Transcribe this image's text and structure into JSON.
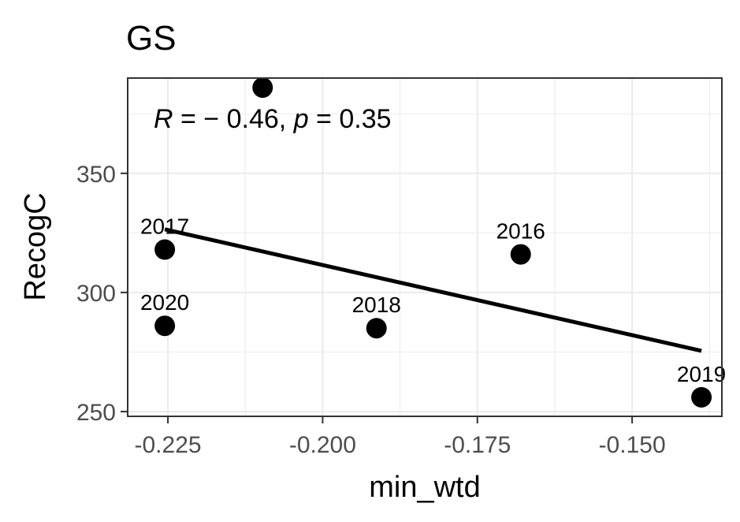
{
  "chart_data": {
    "type": "scatter",
    "title": "GS",
    "xlabel": "min_wtd",
    "ylabel": "RecogC",
    "xlim": [
      -0.2315,
      -0.1355
    ],
    "ylim": [
      248,
      390
    ],
    "x_ticks": [
      -0.225,
      -0.2,
      -0.175,
      -0.15
    ],
    "x_tick_labels": [
      "-0.225",
      "-0.200",
      "-0.175",
      "-0.150"
    ],
    "y_ticks": [
      250,
      300,
      350
    ],
    "y_tick_labels": [
      "250",
      "300",
      "350"
    ],
    "points": [
      {
        "x": -0.2097,
        "y": 386,
        "label": ""
      },
      {
        "x": -0.2255,
        "y": 318,
        "label": "2017"
      },
      {
        "x": -0.2255,
        "y": 286,
        "label": "2020"
      },
      {
        "x": -0.1913,
        "y": 285,
        "label": "2018"
      },
      {
        "x": -0.168,
        "y": 316,
        "label": "2016"
      },
      {
        "x": -0.1388,
        "y": 256,
        "label": "2019"
      }
    ],
    "trend_line": {
      "x": [
        -0.2255,
        -0.1388
      ],
      "y": [
        326.5,
        275.5
      ]
    },
    "annotation": {
      "r_symbol": "R",
      "r_text": " = − 0.46, ",
      "p_symbol": "p",
      "p_text": " = 0.35"
    },
    "grid": true,
    "colors": {
      "points": "#000000",
      "grid": "#ebebeb",
      "line": "#000000",
      "panel_border": "#333333"
    }
  }
}
